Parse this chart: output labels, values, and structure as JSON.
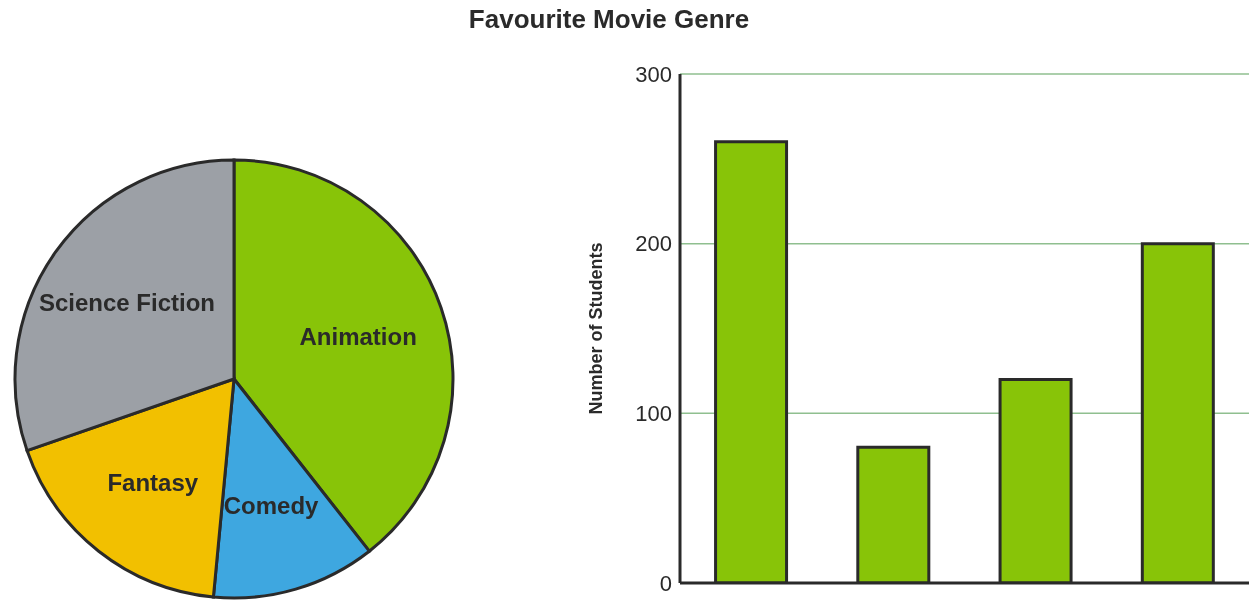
{
  "chart_data": [
    {
      "type": "pie",
      "title": "Favourite Movie Genre",
      "categories": [
        "Animation",
        "Comedy",
        "Fantasy",
        "Science Fiction"
      ],
      "values": [
        39.4,
        12.1,
        18.2,
        30.3
      ],
      "colors": [
        "#88c408",
        "#3ea7e0",
        "#f2c000",
        "#9ca0a6"
      ],
      "legend": false
    },
    {
      "type": "bar",
      "categories": [
        null,
        null,
        null,
        null
      ],
      "values": [
        260,
        80,
        120,
        200
      ],
      "color": "#88c408",
      "ylim": [
        0,
        300
      ],
      "yticks": [
        0,
        100,
        200,
        300
      ],
      "ylabel": "Number of Students",
      "grid": "y",
      "tick_labels": "y",
      "legend": false
    }
  ]
}
